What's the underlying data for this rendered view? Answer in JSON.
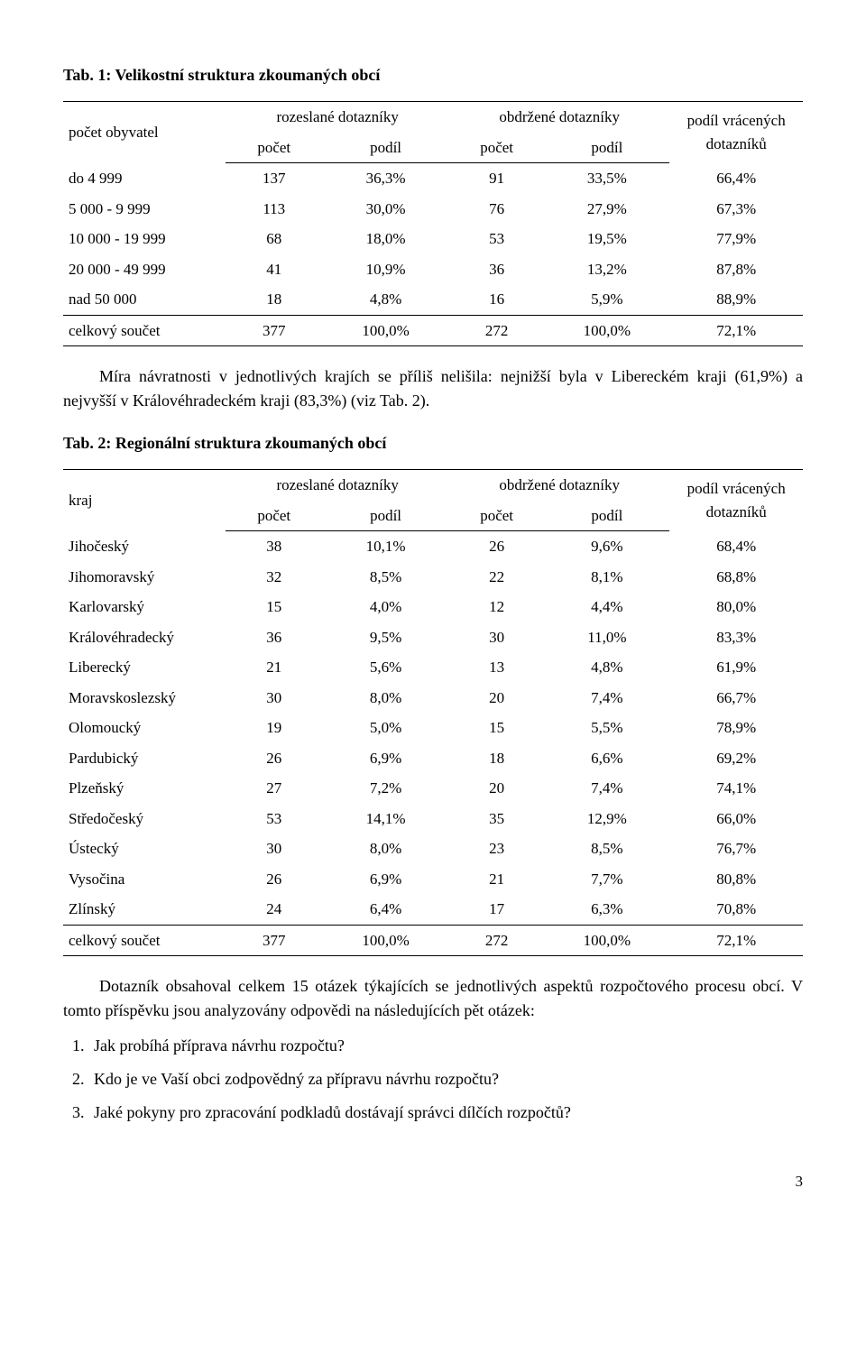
{
  "table1": {
    "title": "Tab. 1: Velikostní struktura zkoumaných obcí",
    "headers": {
      "col1": "počet obyvatel",
      "group1": "rozeslané dotazníky",
      "group2": "obdržené dotazníky",
      "col_last": "podíl vrácených dotazníků",
      "pocet": "počet",
      "podil": "podíl"
    },
    "rows": [
      {
        "label": "do 4 999",
        "c1": "137",
        "c2": "36,3%",
        "c3": "91",
        "c4": "33,5%",
        "c5": "66,4%"
      },
      {
        "label": "5 000 - 9 999",
        "c1": "113",
        "c2": "30,0%",
        "c3": "76",
        "c4": "27,9%",
        "c5": "67,3%"
      },
      {
        "label": "10 000 - 19 999",
        "c1": "68",
        "c2": "18,0%",
        "c3": "53",
        "c4": "19,5%",
        "c5": "77,9%"
      },
      {
        "label": "20 000 - 49 999",
        "c1": "41",
        "c2": "10,9%",
        "c3": "36",
        "c4": "13,2%",
        "c5": "87,8%"
      },
      {
        "label": "nad 50 000",
        "c1": "18",
        "c2": "4,8%",
        "c3": "16",
        "c4": "5,9%",
        "c5": "88,9%"
      }
    ],
    "total": {
      "label": "celkový součet",
      "c1": "377",
      "c2": "100,0%",
      "c3": "272",
      "c4": "100,0%",
      "c5": "72,1%"
    }
  },
  "para1": "Míra návratnosti v jednotlivých krajích se příliš nelišila: nejnižší byla v Libereckém kraji (61,9%) a nejvyšší v Královéhradeckém kraji (83,3%) (viz Tab. 2).",
  "table2": {
    "title": "Tab. 2: Regionální struktura zkoumaných obcí",
    "headers": {
      "col1": "kraj",
      "group1": "rozeslané dotazníky",
      "group2": "obdržené dotazníky",
      "col_last": "podíl vrácených dotazníků",
      "pocet": "počet",
      "podil": "podíl"
    },
    "rows": [
      {
        "label": "Jihočeský",
        "c1": "38",
        "c2": "10,1%",
        "c3": "26",
        "c4": "9,6%",
        "c5": "68,4%"
      },
      {
        "label": "Jihomoravský",
        "c1": "32",
        "c2": "8,5%",
        "c3": "22",
        "c4": "8,1%",
        "c5": "68,8%"
      },
      {
        "label": "Karlovarský",
        "c1": "15",
        "c2": "4,0%",
        "c3": "12",
        "c4": "4,4%",
        "c5": "80,0%"
      },
      {
        "label": "Královéhradecký",
        "c1": "36",
        "c2": "9,5%",
        "c3": "30",
        "c4": "11,0%",
        "c5": "83,3%"
      },
      {
        "label": "Liberecký",
        "c1": "21",
        "c2": "5,6%",
        "c3": "13",
        "c4": "4,8%",
        "c5": "61,9%"
      },
      {
        "label": "Moravskoslezský",
        "c1": "30",
        "c2": "8,0%",
        "c3": "20",
        "c4": "7,4%",
        "c5": "66,7%"
      },
      {
        "label": "Olomoucký",
        "c1": "19",
        "c2": "5,0%",
        "c3": "15",
        "c4": "5,5%",
        "c5": "78,9%"
      },
      {
        "label": "Pardubický",
        "c1": "26",
        "c2": "6,9%",
        "c3": "18",
        "c4": "6,6%",
        "c5": "69,2%"
      },
      {
        "label": "Plzeňský",
        "c1": "27",
        "c2": "7,2%",
        "c3": "20",
        "c4": "7,4%",
        "c5": "74,1%"
      },
      {
        "label": "Středočeský",
        "c1": "53",
        "c2": "14,1%",
        "c3": "35",
        "c4": "12,9%",
        "c5": "66,0%"
      },
      {
        "label": "Ústecký",
        "c1": "30",
        "c2": "8,0%",
        "c3": "23",
        "c4": "8,5%",
        "c5": "76,7%"
      },
      {
        "label": "Vysočina",
        "c1": "26",
        "c2": "6,9%",
        "c3": "21",
        "c4": "7,7%",
        "c5": "80,8%"
      },
      {
        "label": "Zlínský",
        "c1": "24",
        "c2": "6,4%",
        "c3": "17",
        "c4": "6,3%",
        "c5": "70,8%"
      }
    ],
    "total": {
      "label": "celkový součet",
      "c1": "377",
      "c2": "100,0%",
      "c3": "272",
      "c4": "100,0%",
      "c5": "72,1%"
    }
  },
  "para2": "Dotazník obsahoval celkem 15 otázek týkajících se jednotlivých aspektů rozpočtového procesu obcí. V tomto příspěvku jsou analyzovány odpovědi na následujících pět otázek:",
  "questions": [
    "Jak probíhá příprava návrhu rozpočtu?",
    "Kdo je ve Vaší obci zodpovědný za přípravu návrhu rozpočtu?",
    "Jaké pokyny pro zpracování podkladů dostávají správci dílčích rozpočtů?"
  ],
  "pagenum": "3"
}
